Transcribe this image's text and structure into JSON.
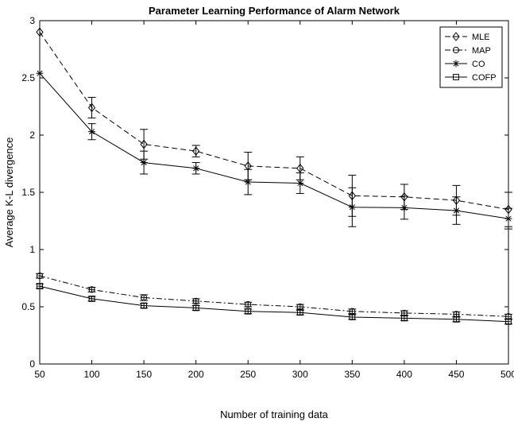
{
  "chart_data": {
    "type": "line",
    "title": "Parameter Learning Performance of Alarm Network",
    "xlabel": "Number of training data",
    "ylabel": "Average K-L divergence",
    "x": [
      50,
      100,
      150,
      200,
      250,
      300,
      350,
      400,
      450,
      500
    ],
    "xlim": [
      50,
      500
    ],
    "ylim": [
      0,
      3
    ],
    "xticks": [
      "50",
      "100",
      "150",
      "200",
      "250",
      "300",
      "350",
      "400",
      "450",
      "500"
    ],
    "xtick_values": [
      50,
      100,
      150,
      200,
      250,
      300,
      350,
      400,
      450,
      500
    ],
    "yticks": [
      "0",
      "0.5",
      "1",
      "1.5",
      "2",
      "2.5",
      "3"
    ],
    "ytick_values": [
      0,
      0.5,
      1,
      1.5,
      2,
      2.5,
      3
    ],
    "grid": false,
    "legend_position": "top-right",
    "series": [
      {
        "name": "MLE",
        "marker": "diamond",
        "dash": "dashed",
        "values": [
          2.9,
          2.24,
          1.92,
          1.86,
          1.73,
          1.71,
          1.47,
          1.46,
          1.43,
          1.35
        ],
        "errors": [
          0,
          0.09,
          0.13,
          0.05,
          0.12,
          0.1,
          0.18,
          0.11,
          0.13,
          0.15
        ]
      },
      {
        "name": "MAP",
        "marker": "circle",
        "dash": "dashdot",
        "values": [
          0.77,
          0.65,
          0.58,
          0.55,
          0.52,
          0.5,
          0.46,
          0.445,
          0.435,
          0.415
        ],
        "errors": [
          0.02,
          0.02,
          0.025,
          0.02,
          0.02,
          0.02,
          0.02,
          0.02,
          0.02,
          0.02
        ]
      },
      {
        "name": "CO",
        "marker": "asterisk",
        "dash": "solid",
        "values": [
          2.54,
          2.03,
          1.76,
          1.71,
          1.59,
          1.58,
          1.37,
          1.365,
          1.34,
          1.27
        ],
        "errors": [
          0,
          0.07,
          0.1,
          0.05,
          0.11,
          0.09,
          0.17,
          0.1,
          0.12,
          0.09
        ]
      },
      {
        "name": "COFP",
        "marker": "square",
        "dash": "solid",
        "values": [
          0.68,
          0.57,
          0.51,
          0.49,
          0.46,
          0.45,
          0.41,
          0.4,
          0.39,
          0.37
        ],
        "errors": [
          0.02,
          0.02,
          0.02,
          0.02,
          0.02,
          0.02,
          0.02,
          0.02,
          0.02,
          0.02
        ]
      }
    ]
  }
}
